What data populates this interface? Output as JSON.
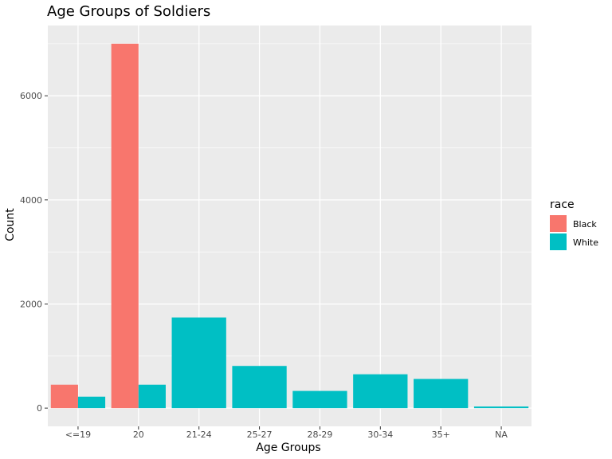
{
  "chart_data": {
    "type": "bar",
    "title": "Age Groups of Soldiers",
    "xlabel": "Age Groups",
    "ylabel": "Count",
    "categories": [
      "<=19",
      "20",
      "21-24",
      "25-27",
      "28-29",
      "30-34",
      "35+",
      "NA"
    ],
    "series": [
      {
        "name": "Black",
        "color": "#F8766D",
        "values": [
          450,
          7000,
          null,
          null,
          null,
          null,
          null,
          null
        ]
      },
      {
        "name": "White",
        "color": "#00BFC4",
        "values": [
          220,
          450,
          1740,
          810,
          330,
          650,
          560,
          30
        ]
      }
    ],
    "ylim": [
      -350,
      7350
    ],
    "yticks": [
      0,
      2000,
      4000,
      6000
    ],
    "grid": true,
    "legend": {
      "title": "race",
      "position": "right"
    },
    "panel_color": "#EBEBEB"
  }
}
